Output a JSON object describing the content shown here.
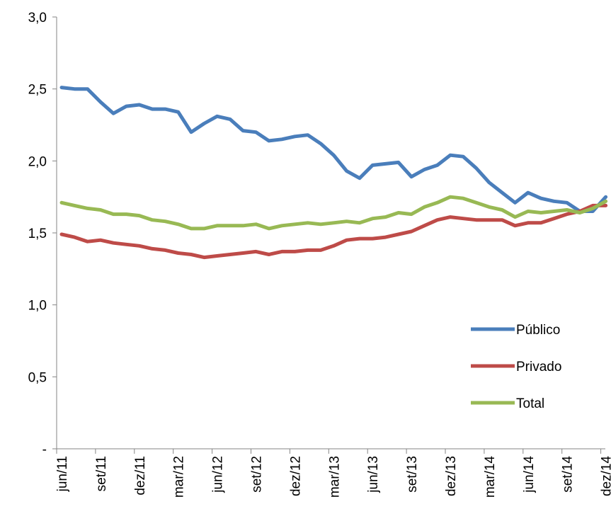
{
  "chart_data": {
    "type": "line",
    "title": "",
    "xlabel": "",
    "ylabel": "",
    "ylim": [
      0,
      3.0
    ],
    "ytick_labels": [
      "-",
      "0,5",
      "1,0",
      "1,5",
      "2,0",
      "2,5",
      "3,0"
    ],
    "ytick_values": [
      0,
      0.5,
      1.0,
      1.5,
      2.0,
      2.5,
      3.0
    ],
    "categories": [
      "jun/11",
      "jul/11",
      "ago/11",
      "set/11",
      "out/11",
      "nov/11",
      "dez/11",
      "jan/12",
      "fev/12",
      "mar/12",
      "abr/12",
      "mai/12",
      "jun/12",
      "jul/12",
      "ago/12",
      "set/12",
      "out/12",
      "nov/12",
      "dez/12",
      "jan/13",
      "fev/13",
      "mar/13",
      "abr/13",
      "mai/13",
      "jun/13",
      "jul/13",
      "ago/13",
      "set/13",
      "out/13",
      "nov/13",
      "dez/13",
      "jan/14",
      "fev/14",
      "mar/14",
      "abr/14",
      "mai/14",
      "jun/14",
      "jul/14",
      "ago/14",
      "set/14",
      "out/14",
      "nov/14",
      "dez/14"
    ],
    "xtick_labels": [
      "jun/11",
      "set/11",
      "dez/11",
      "mar/12",
      "jun/12",
      "set/12",
      "dez/12",
      "mar/13",
      "jun/13",
      "set/13",
      "dez/13",
      "mar/14",
      "jun/14",
      "set/14",
      "dez/14"
    ],
    "legend_position": "right",
    "grid": false,
    "series": [
      {
        "name": "Público",
        "color": "#4a7ebb",
        "values": [
          2.51,
          2.5,
          2.5,
          2.41,
          2.33,
          2.38,
          2.39,
          2.36,
          2.36,
          2.34,
          2.2,
          2.26,
          2.31,
          2.29,
          2.21,
          2.2,
          2.14,
          2.15,
          2.17,
          2.18,
          2.12,
          2.04,
          1.93,
          1.88,
          1.97,
          1.98,
          1.99,
          1.89,
          1.94,
          1.97,
          2.04,
          2.03,
          1.95,
          1.85,
          1.78,
          1.71,
          1.78,
          1.74,
          1.72,
          1.71,
          1.65,
          1.65,
          1.75
        ]
      },
      {
        "name": "Privado",
        "color": "#be4b48",
        "values": [
          1.49,
          1.47,
          1.44,
          1.45,
          1.43,
          1.42,
          1.41,
          1.39,
          1.38,
          1.36,
          1.35,
          1.33,
          1.34,
          1.35,
          1.36,
          1.37,
          1.35,
          1.37,
          1.37,
          1.38,
          1.38,
          1.41,
          1.45,
          1.46,
          1.46,
          1.47,
          1.49,
          1.51,
          1.55,
          1.59,
          1.61,
          1.6,
          1.59,
          1.59,
          1.59,
          1.55,
          1.57,
          1.57,
          1.6,
          1.63,
          1.65,
          1.69,
          1.69
        ]
      },
      {
        "name": "Total",
        "color": "#98b954",
        "values": [
          1.71,
          1.69,
          1.67,
          1.66,
          1.63,
          1.63,
          1.62,
          1.59,
          1.58,
          1.56,
          1.53,
          1.53,
          1.55,
          1.55,
          1.55,
          1.56,
          1.53,
          1.55,
          1.56,
          1.57,
          1.56,
          1.57,
          1.58,
          1.57,
          1.6,
          1.61,
          1.64,
          1.63,
          1.68,
          1.71,
          1.75,
          1.74,
          1.71,
          1.68,
          1.66,
          1.61,
          1.65,
          1.64,
          1.65,
          1.66,
          1.64,
          1.67,
          1.72
        ]
      }
    ]
  }
}
